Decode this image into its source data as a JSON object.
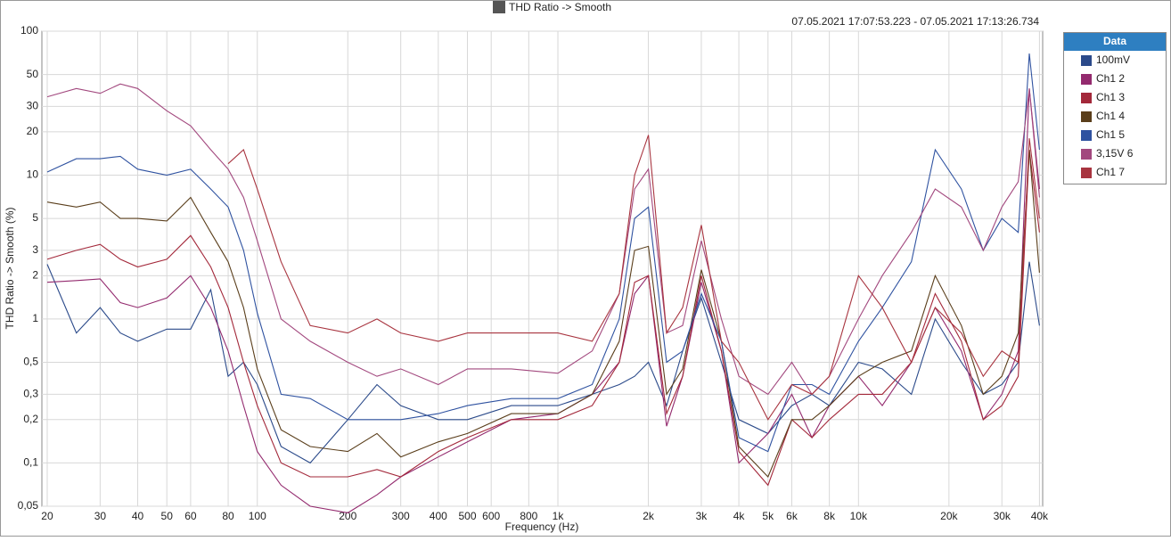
{
  "chart_data": {
    "type": "line",
    "title": "THD Ratio -> Smooth",
    "subtitle": "07.05.2021 17:07:53.223 - 07.05.2021 17:13:26.734",
    "x_label": "Frequency (Hz)",
    "y_label": "THD Ratio -> Smooth (%)",
    "legend_title": "Data",
    "legend": "right",
    "grid": true,
    "xscale": "log",
    "yscale": "log",
    "xlim": [
      19.2,
      41000
    ],
    "ylim": [
      0.05,
      100
    ],
    "xticks": [
      20,
      30,
      40,
      50,
      60,
      80,
      100,
      200,
      300,
      400,
      500,
      600,
      800,
      {
        "value": 1000,
        "label": "1k"
      },
      {
        "value": 2000,
        "label": "2k"
      },
      {
        "value": 3000,
        "label": "3k"
      },
      {
        "value": 4000,
        "label": "4k"
      },
      {
        "value": 5000,
        "label": "5k"
      },
      {
        "value": 6000,
        "label": "6k"
      },
      {
        "value": 8000,
        "label": "8k"
      },
      {
        "value": 10000,
        "label": "10k"
      },
      {
        "value": 20000,
        "label": "20k"
      },
      {
        "value": 30000,
        "label": "30k"
      },
      {
        "value": 40000,
        "label": "40k"
      }
    ],
    "yticks": [
      {
        "value": 0.05,
        "label": "0,05"
      },
      {
        "value": 0.1,
        "label": "0,1"
      },
      {
        "value": 0.2,
        "label": "0,2"
      },
      {
        "value": 0.3,
        "label": "0,3"
      },
      {
        "value": 0.5,
        "label": "0,5"
      },
      1,
      2,
      3,
      5,
      10,
      20,
      30,
      50,
      100
    ],
    "x": [
      20,
      25,
      30,
      35,
      40,
      50,
      60,
      70,
      80,
      90,
      100,
      120,
      150,
      200,
      250,
      300,
      400,
      500,
      700,
      1000,
      1300,
      1600,
      1800,
      2000,
      2300,
      2600,
      3000,
      3500,
      4000,
      5000,
      6000,
      7000,
      8000,
      10000,
      12000,
      15000,
      18000,
      22000,
      26000,
      30000,
      34000,
      37000,
      40000
    ],
    "series": [
      {
        "name": "100mV",
        "color": "#2b4a8a",
        "values": [
          2.4,
          0.8,
          1.2,
          0.8,
          0.7,
          0.85,
          0.85,
          1.6,
          0.4,
          0.5,
          0.35,
          0.13,
          0.1,
          0.2,
          0.35,
          0.25,
          0.2,
          0.2,
          0.25,
          0.25,
          0.3,
          0.35,
          0.4,
          0.5,
          0.25,
          0.6,
          1.4,
          0.5,
          0.2,
          0.16,
          0.25,
          0.3,
          0.25,
          0.5,
          0.45,
          0.3,
          1.0,
          0.5,
          0.3,
          0.35,
          0.5,
          2.5,
          0.9
        ]
      },
      {
        "name": "Ch1 2",
        "color": "#932a6e",
        "values": [
          1.8,
          1.85,
          1.9,
          1.3,
          1.2,
          1.4,
          2.0,
          1.2,
          0.6,
          0.25,
          0.12,
          0.07,
          0.05,
          0.045,
          0.06,
          0.08,
          0.11,
          0.14,
          0.2,
          0.22,
          0.3,
          0.5,
          1.5,
          2.0,
          0.18,
          0.4,
          1.8,
          0.6,
          0.1,
          0.16,
          0.3,
          0.15,
          0.25,
          0.4,
          0.25,
          0.5,
          1.2,
          0.6,
          0.2,
          0.3,
          0.6,
          40,
          8
        ]
      },
      {
        "name": "Ch1 3",
        "color": "#a3283a",
        "values": [
          2.6,
          3.0,
          3.3,
          2.6,
          2.3,
          2.6,
          3.8,
          2.3,
          1.2,
          0.5,
          0.25,
          0.1,
          0.08,
          0.08,
          0.09,
          0.08,
          0.12,
          0.15,
          0.2,
          0.2,
          0.25,
          0.5,
          1.8,
          2.0,
          0.22,
          0.4,
          2.0,
          0.6,
          0.12,
          0.07,
          0.2,
          0.15,
          0.2,
          0.3,
          0.3,
          0.5,
          1.5,
          0.7,
          0.2,
          0.25,
          0.4,
          15,
          4
        ]
      },
      {
        "name": "Ch1 4",
        "color": "#5a3e1b",
        "values": [
          6.5,
          6,
          6.5,
          5,
          5,
          4.8,
          7,
          4,
          2.5,
          1.2,
          0.45,
          0.17,
          0.13,
          0.12,
          0.16,
          0.11,
          0.14,
          0.16,
          0.22,
          0.22,
          0.3,
          0.7,
          3.0,
          3.2,
          0.3,
          0.45,
          2.2,
          0.7,
          0.13,
          0.08,
          0.2,
          0.2,
          0.25,
          0.4,
          0.5,
          0.6,
          2.0,
          0.9,
          0.3,
          0.4,
          0.8,
          15,
          2.1
        ]
      },
      {
        "name": "Ch1 5",
        "color": "#2f52a0",
        "values": [
          10.5,
          13,
          13,
          13.5,
          11,
          10,
          11,
          8,
          6,
          3,
          1.1,
          0.3,
          0.28,
          0.2,
          0.2,
          0.2,
          0.22,
          0.25,
          0.28,
          0.28,
          0.35,
          1.0,
          5,
          6,
          0.5,
          0.6,
          1.5,
          0.7,
          0.15,
          0.12,
          0.35,
          0.35,
          0.3,
          0.7,
          1.2,
          2.5,
          15,
          8,
          3,
          5,
          4,
          70,
          15
        ]
      },
      {
        "name": "3,15V 6",
        "color": "#a2487e",
        "values": [
          35,
          40,
          37,
          43,
          40,
          28,
          22,
          15,
          11,
          7,
          3.5,
          1.0,
          0.7,
          0.5,
          0.4,
          0.45,
          0.35,
          0.45,
          0.45,
          0.42,
          0.6,
          1.5,
          8,
          11,
          0.8,
          0.9,
          3.5,
          1.0,
          0.4,
          0.3,
          0.5,
          0.3,
          0.4,
          1.0,
          2,
          4,
          8,
          6,
          3,
          6,
          9,
          40,
          7
        ]
      },
      {
        "name": "Ch1 7",
        "color": "#a8343f",
        "values": [
          null,
          null,
          null,
          null,
          null,
          null,
          null,
          null,
          12,
          15,
          8,
          2.5,
          0.9,
          0.8,
          1.0,
          0.8,
          0.7,
          0.8,
          0.8,
          0.8,
          0.7,
          1.5,
          10,
          19,
          0.8,
          1.2,
          4.5,
          0.7,
          0.5,
          0.2,
          0.35,
          0.3,
          0.4,
          2.0,
          1.2,
          0.5,
          1.2,
          0.8,
          0.4,
          0.6,
          0.5,
          18,
          5
        ]
      }
    ]
  }
}
